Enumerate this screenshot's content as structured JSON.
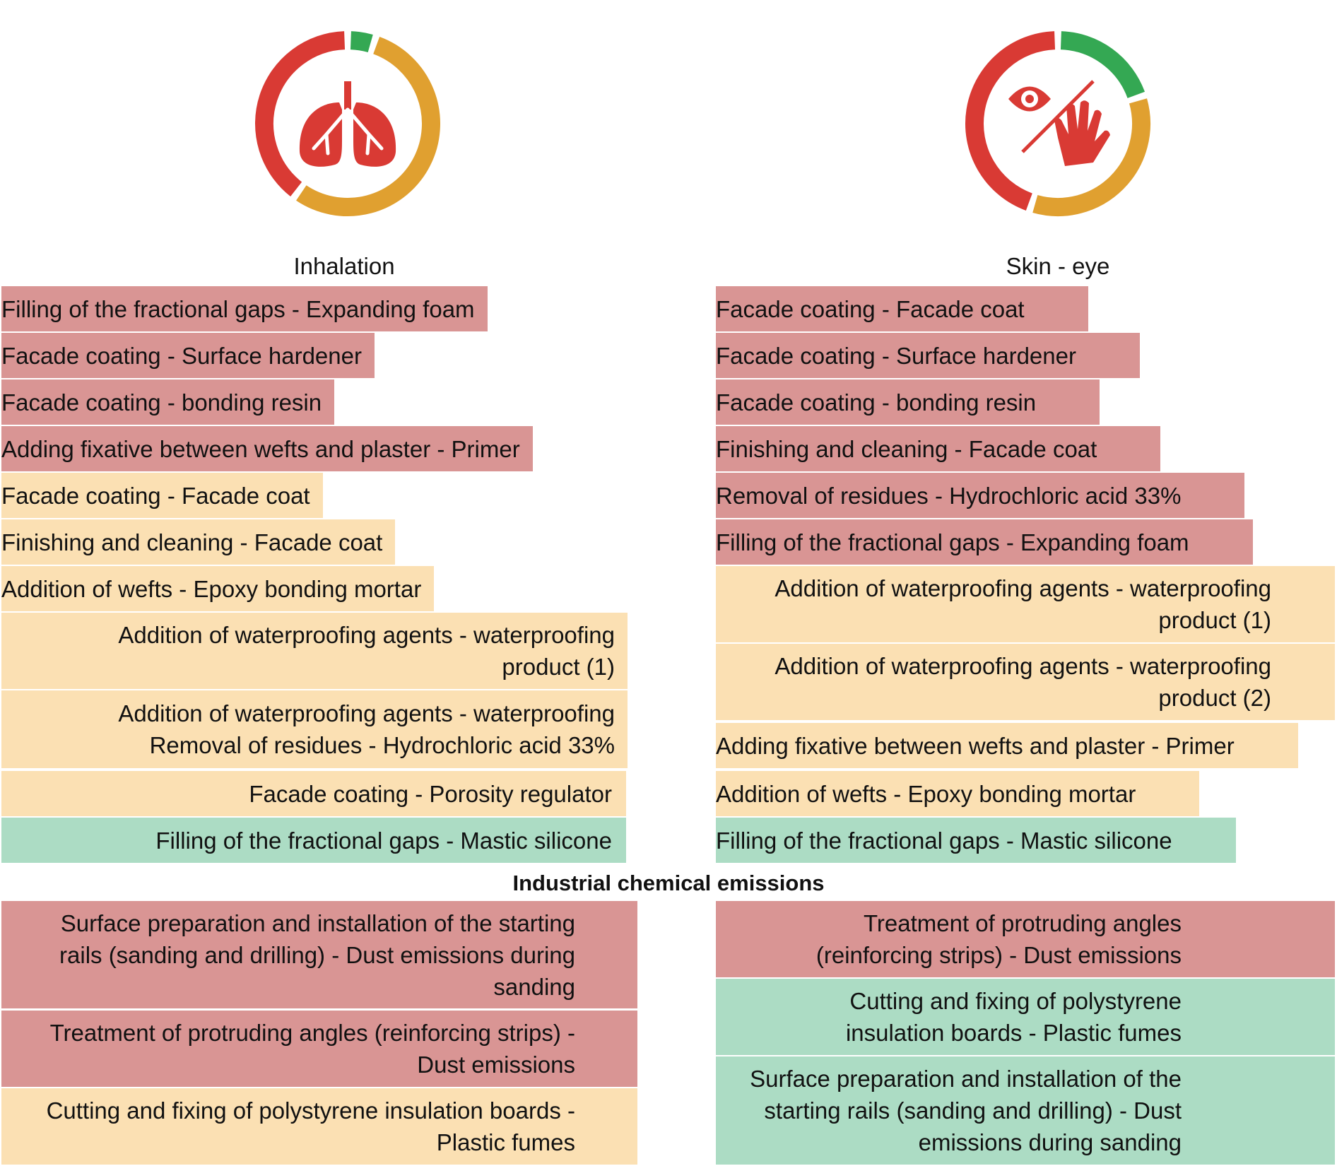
{
  "chart_data": [
    {
      "type": "table",
      "title": "Inhalation",
      "icon": "lungs-icon",
      "ring": [
        {
          "level": "green",
          "fraction": 0.05,
          "color": "#34a853"
        },
        {
          "level": "amber",
          "fraction": 0.55,
          "color": "#e0a030"
        },
        {
          "level": "red",
          "fraction": 0.4,
          "color": "#d93a34"
        }
      ],
      "rows": [
        {
          "text": "Filling of the fractional gaps - Expanding foam",
          "level": "red"
        },
        {
          "text": "Facade coating - Surface hardener",
          "level": "red"
        },
        {
          "text": "Facade coating - bonding resin",
          "level": "red"
        },
        {
          "text": "Adding fixative between wefts and plaster - Primer",
          "level": "red"
        },
        {
          "text": "Facade coating - Facade coat",
          "level": "amber"
        },
        {
          "text": "Finishing and cleaning - Facade coat",
          "level": "amber"
        },
        {
          "text": "Addition of wefts - Epoxy bonding mortar",
          "level": "amber"
        },
        {
          "text": "Addition of waterproofing agents - waterproofing product (1)",
          "level": "amber"
        },
        {
          "text": "Addition of waterproofing agents - waterproofing Removal of residues - Hydrochloric acid 33%",
          "level": "amber"
        },
        {
          "text": "Facade coating - Porosity regulator",
          "level": "amber"
        },
        {
          "text": "Filling of the fractional gaps - Mastic silicone",
          "level": "green"
        }
      ]
    },
    {
      "type": "table",
      "title": "Skin - eye",
      "icon": "eye-hand-icon",
      "ring": [
        {
          "level": "green",
          "fraction": 0.2,
          "color": "#34a853"
        },
        {
          "level": "amber",
          "fraction": 0.35,
          "color": "#e0a030"
        },
        {
          "level": "red",
          "fraction": 0.45,
          "color": "#d93a34"
        }
      ],
      "rows": [
        {
          "text": "Facade coating - Facade coat",
          "level": "red"
        },
        {
          "text": "Facade coating - Surface hardener",
          "level": "red"
        },
        {
          "text": "Facade coating - bonding resin",
          "level": "red"
        },
        {
          "text": "Finishing and cleaning - Facade coat",
          "level": "red"
        },
        {
          "text": "Removal of residues - Hydrochloric acid 33%",
          "level": "red"
        },
        {
          "text": "Filling of the fractional gaps - Expanding foam",
          "level": "red"
        },
        {
          "text": "Addition of waterproofing agents - waterproofing product (1)",
          "level": "amber"
        },
        {
          "text": "Addition of waterproofing agents - waterproofing product (2)",
          "level": "amber"
        },
        {
          "text": "Adding fixative between wefts and plaster - Primer",
          "level": "amber"
        },
        {
          "text": "Addition of wefts - Epoxy bonding mortar",
          "level": "amber"
        },
        {
          "text": "Filling of the fractional gaps - Mastic silicone",
          "level": "green"
        }
      ]
    },
    {
      "type": "table",
      "title": "Industrial chemical emissions",
      "left_rows": [
        {
          "text": "Surface preparation and installation of the starting rails (sanding and drilling) - Dust emissions during sanding",
          "level": "red"
        },
        {
          "text": "Treatment of protruding angles (reinforcing strips) - Dust emissions",
          "level": "red"
        },
        {
          "text": "Cutting and fixing of polystyrene insulation boards - Plastic fumes",
          "level": "amber"
        }
      ],
      "right_rows": [
        {
          "text": "Treatment of protruding angles (reinforcing strips) - Dust emissions",
          "level": "red"
        },
        {
          "text": "Cutting and fixing of polystyrene insulation boards - Plastic fumes",
          "level": "green"
        },
        {
          "text": "Surface preparation and installation of the starting rails (sanding and drilling) - Dust emissions during sanding",
          "level": "green"
        }
      ]
    }
  ]
}
